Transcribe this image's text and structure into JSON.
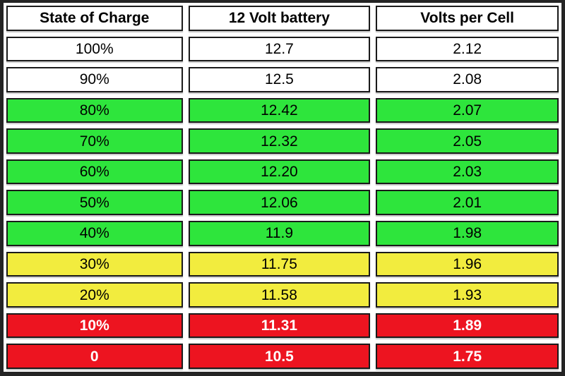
{
  "chart_data": {
    "type": "table",
    "columns": [
      "State of Charge",
      "12 Volt battery",
      "Volts per Cell"
    ],
    "rows": [
      {
        "cells": [
          "100%",
          "12.7",
          "2.12"
        ],
        "band": "white"
      },
      {
        "cells": [
          "90%",
          "12.5",
          "2.08"
        ],
        "band": "white"
      },
      {
        "cells": [
          "80%",
          "12.42",
          "2.07"
        ],
        "band": "green"
      },
      {
        "cells": [
          "70%",
          "12.32",
          "2.05"
        ],
        "band": "green"
      },
      {
        "cells": [
          "60%",
          "12.20",
          "2.03"
        ],
        "band": "green"
      },
      {
        "cells": [
          "50%",
          "12.06",
          "2.01"
        ],
        "band": "green"
      },
      {
        "cells": [
          "40%",
          "11.9",
          "1.98"
        ],
        "band": "green"
      },
      {
        "cells": [
          "30%",
          "11.75",
          "1.96"
        ],
        "band": "yellow"
      },
      {
        "cells": [
          "20%",
          "11.58",
          "1.93"
        ],
        "band": "yellow"
      },
      {
        "cells": [
          "10%",
          "11.31",
          "1.89"
        ],
        "band": "red"
      },
      {
        "cells": [
          "0",
          "10.5",
          "1.75"
        ],
        "band": "red"
      }
    ],
    "band_colors": {
      "white": "#ffffff",
      "green": "#2ee53c",
      "yellow": "#f2ec3e",
      "red": "#ed1420"
    },
    "band_text_colors": {
      "white": "#000000",
      "green": "#000000",
      "yellow": "#000000",
      "red": "#ffffff"
    }
  }
}
